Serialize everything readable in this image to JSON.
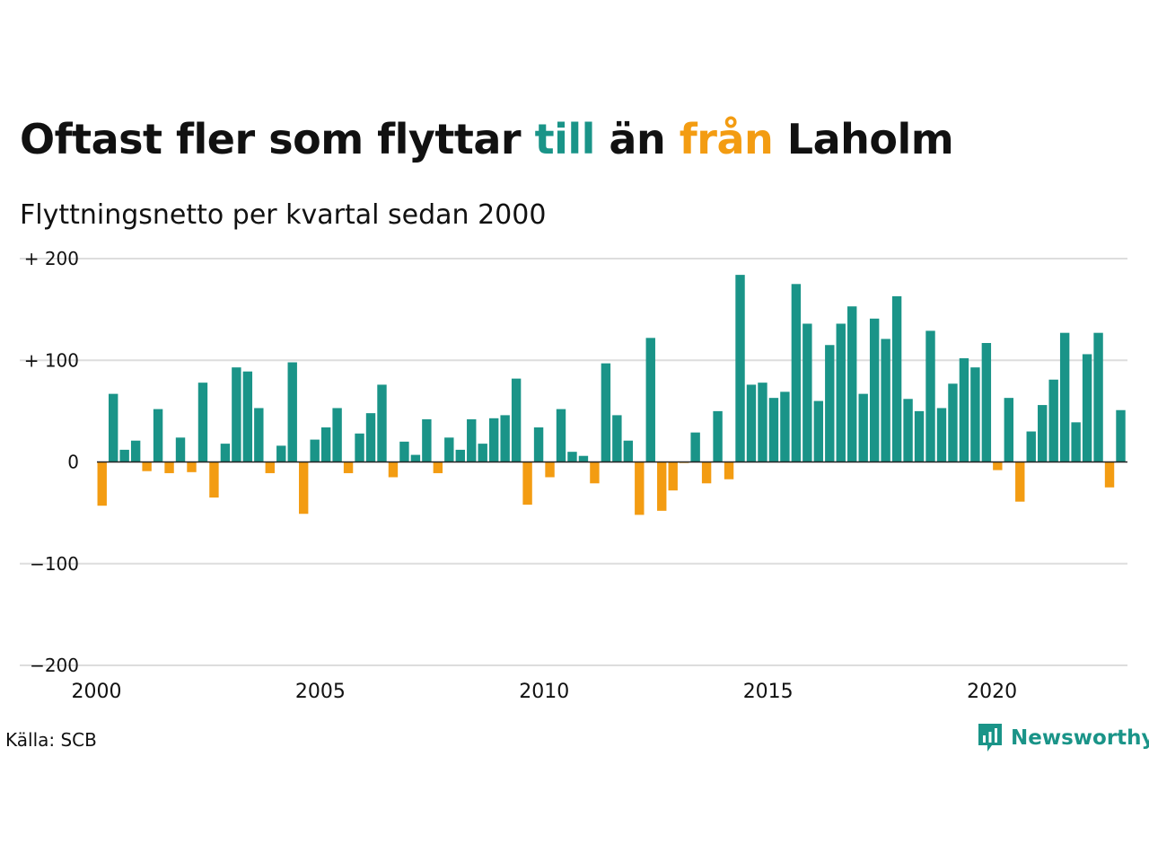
{
  "header": {
    "title_part1": "Oftast fler som flyttar ",
    "title_to": "till",
    "title_part2": " än ",
    "title_from": "från",
    "title_part3": " Laholm",
    "subtitle": "Flyttningsnetto per kvartal sedan 2000"
  },
  "footer": {
    "source": "Källa: SCB",
    "brand": "Newsworthy"
  },
  "colors": {
    "positive": "#1a9488",
    "negative": "#f39c12",
    "grid": "#dddddd",
    "baseline": "#222222"
  },
  "chart_data": {
    "type": "bar",
    "title": "Oftast fler som flyttar till än från Laholm",
    "subtitle": "Flyttningsnetto per kvartal sedan 2000",
    "frequency": "quarterly",
    "start": "2000 Q1",
    "ylim": [
      -200,
      200
    ],
    "y_ticks": [
      {
        "value": 200,
        "label": "+ 200"
      },
      {
        "value": 100,
        "label": "+ 100"
      },
      {
        "value": 0,
        "label": "0"
      },
      {
        "value": -100,
        "label": "−100"
      },
      {
        "value": -200,
        "label": "−200"
      }
    ],
    "x_ticks": [
      {
        "year": 2000,
        "label": "2000"
      },
      {
        "year": 2005,
        "label": "2005"
      },
      {
        "year": 2010,
        "label": "2010"
      },
      {
        "year": 2015,
        "label": "2015"
      },
      {
        "year": 2020,
        "label": "2020"
      }
    ],
    "grid": true,
    "values": [
      -43,
      67,
      12,
      21,
      -9,
      52,
      -11,
      24,
      -10,
      78,
      -35,
      18,
      93,
      89,
      53,
      -11,
      16,
      98,
      -51,
      22,
      34,
      53,
      -11,
      28,
      48,
      76,
      -15,
      20,
      7,
      42,
      -11,
      24,
      12,
      42,
      18,
      43,
      46,
      82,
      -42,
      34,
      -15,
      52,
      10,
      6,
      -21,
      97,
      46,
      21,
      -52,
      122,
      -48,
      -28,
      -1,
      29,
      -21,
      50,
      -17,
      184,
      76,
      78,
      63,
      69,
      175,
      136,
      60,
      115,
      136,
      153,
      67,
      141,
      121,
      163,
      62,
      50,
      129,
      53,
      77,
      102,
      93,
      117,
      -8,
      63,
      -39,
      30,
      56,
      81,
      127,
      39,
      106,
      127,
      -25,
      51
    ]
  }
}
